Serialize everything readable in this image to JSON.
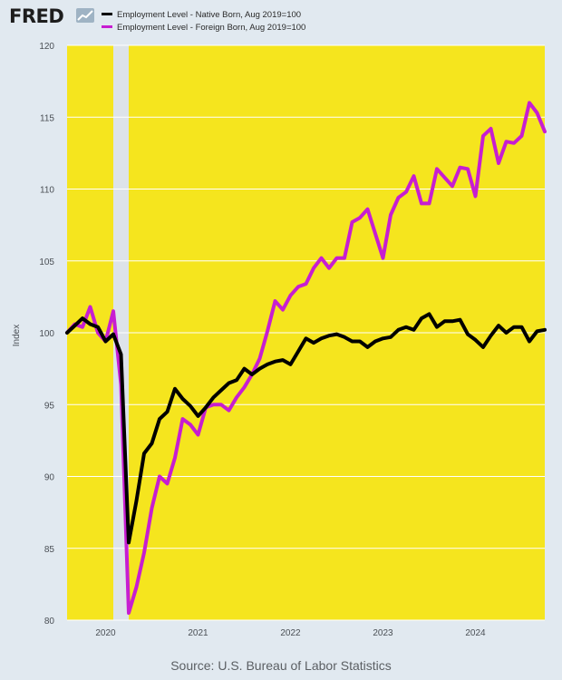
{
  "header": {
    "logo_text": "FRED",
    "logo_icon": "line-chart-icon"
  },
  "colors": {
    "background": "#e1e9f0",
    "plot_background": "#f5e51e",
    "recession_shading": "#dde3e9",
    "native_born": "#000000",
    "foreign_born": "#c71ed1",
    "grid": "#ffffff",
    "axis_text": "#4a4f55"
  },
  "source": "Source: U.S. Bureau of Labor Statistics",
  "chart_data": {
    "type": "line",
    "title": "",
    "xlabel": "",
    "ylabel": "Index",
    "ylim": [
      80,
      120
    ],
    "yticks": [
      80,
      85,
      90,
      95,
      100,
      105,
      110,
      115,
      120
    ],
    "xlim": [
      "2019-08",
      "2024-10"
    ],
    "xticks": [
      "2020",
      "2021",
      "2022",
      "2023",
      "2024"
    ],
    "grid": true,
    "legend_position": "top",
    "recession": [
      "2020-02",
      "2020-04"
    ],
    "x": [
      "2019-08",
      "2019-09",
      "2019-10",
      "2019-11",
      "2019-12",
      "2020-01",
      "2020-02",
      "2020-03",
      "2020-04",
      "2020-05",
      "2020-06",
      "2020-07",
      "2020-08",
      "2020-09",
      "2020-10",
      "2020-11",
      "2020-12",
      "2021-01",
      "2021-02",
      "2021-03",
      "2021-04",
      "2021-05",
      "2021-06",
      "2021-07",
      "2021-08",
      "2021-09",
      "2021-10",
      "2021-11",
      "2021-12",
      "2022-01",
      "2022-02",
      "2022-03",
      "2022-04",
      "2022-05",
      "2022-06",
      "2022-07",
      "2022-08",
      "2022-09",
      "2022-10",
      "2022-11",
      "2022-12",
      "2023-01",
      "2023-02",
      "2023-03",
      "2023-04",
      "2023-05",
      "2023-06",
      "2023-07",
      "2023-08",
      "2023-09",
      "2023-10",
      "2023-11",
      "2023-12",
      "2024-01",
      "2024-02",
      "2024-03",
      "2024-04",
      "2024-05",
      "2024-06",
      "2024-07",
      "2024-08",
      "2024-09",
      "2024-10"
    ],
    "series": [
      {
        "name": "Employment Level - Native Born, Aug 2019=100",
        "color": "#000000",
        "values": [
          100.0,
          100.5,
          101.0,
          100.6,
          100.4,
          99.4,
          99.9,
          98.5,
          85.4,
          88.3,
          91.6,
          92.3,
          94.0,
          94.5,
          96.1,
          95.4,
          94.9,
          94.2,
          94.8,
          95.5,
          96.0,
          96.5,
          96.7,
          97.5,
          97.1,
          97.5,
          97.8,
          98.0,
          98.1,
          97.8,
          98.7,
          99.6,
          99.3,
          99.6,
          99.8,
          99.9,
          99.7,
          99.4,
          99.4,
          99.0,
          99.4,
          99.6,
          99.7,
          100.2,
          100.4,
          100.2,
          101.0,
          101.3,
          100.4,
          100.8,
          100.8,
          100.9,
          99.9,
          99.5,
          99.0,
          99.8,
          100.5,
          100.0,
          100.4,
          100.4,
          99.4,
          100.1,
          100.2
        ]
      },
      {
        "name": "Employment Level - Foreign Born, Aug 2019=100",
        "color": "#c71ed1",
        "values": [
          100.0,
          100.6,
          100.4,
          101.8,
          100.0,
          99.4,
          101.5,
          96.4,
          80.5,
          82.3,
          84.7,
          87.8,
          90.0,
          89.5,
          91.3,
          94.0,
          93.6,
          92.9,
          94.8,
          95.0,
          95.0,
          94.6,
          95.5,
          96.2,
          97.1,
          98.2,
          100.1,
          102.2,
          101.6,
          102.6,
          103.2,
          103.4,
          104.5,
          105.2,
          104.5,
          105.2,
          105.2,
          107.7,
          108.0,
          108.6,
          106.9,
          105.2,
          108.2,
          109.4,
          109.8,
          110.9,
          109.0,
          109.0,
          111.4,
          110.8,
          110.2,
          111.5,
          111.4,
          109.5,
          113.7,
          114.2,
          111.8,
          113.3,
          113.2,
          113.7,
          116.0,
          115.3,
          114.0
        ]
      }
    ]
  }
}
